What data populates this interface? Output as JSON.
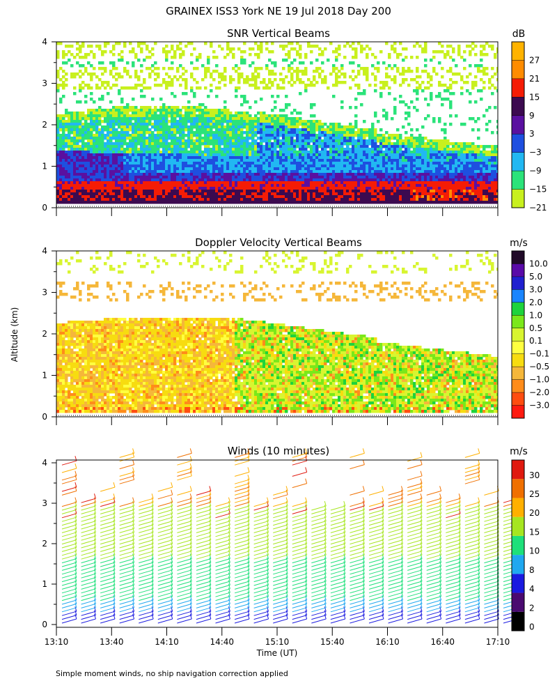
{
  "page_title": "GRAINEX ISS3 York NE  19 Jul 2018 Day 200",
  "footnote": "Simple moment winds, no ship navigation correction applied",
  "colors": {
    "snr": [
      "#c8f01e",
      "#2be37a",
      "#21b8f2",
      "#1e4fe0",
      "#5a10a0",
      "#3c0a50",
      "#f51c05",
      "#ff8c00",
      "#ffb300"
    ],
    "doppler": [
      "#ff1a10",
      "#ff4d10",
      "#ff8c1a",
      "#f5b73a",
      "#f7dc10",
      "#ffff40",
      "#d8f530",
      "#7be81a",
      "#1ed33c",
      "#1a85ff",
      "#2020d0",
      "#5a0aa8",
      "#200a28"
    ],
    "winds": [
      "#000000",
      "#4a0a70",
      "#1a1ae0",
      "#1fa8f0",
      "#1ee07a",
      "#a6e620",
      "#ffb000",
      "#f07000",
      "#e01a10"
    ]
  },
  "chart_data": [
    {
      "type": "heatmap",
      "title": "SNR Vertical Beams",
      "ylabel": "",
      "xlabel": "",
      "ylim": [
        0,
        4
      ],
      "y_ticks": [
        "0",
        "1",
        "2",
        "3",
        "4"
      ],
      "x_ticks_count": 9,
      "colorbar": {
        "unit": "dB",
        "labels": [
          "27",
          "21",
          "15",
          "9",
          "3",
          "−3",
          "−9",
          "−15",
          "−21"
        ]
      },
      "layers": [
        {
          "altitude_km": [
            0.2,
            0.5
          ],
          "level": "9"
        },
        {
          "altitude_km": [
            0.5,
            0.7
          ],
          "level": "15"
        },
        {
          "altitude_km": [
            0.7,
            1.2
          ],
          "level": "-3"
        },
        {
          "altitude_km": [
            1.2,
            2.0
          ],
          "level": "-9"
        },
        {
          "altitude_km": [
            2.0,
            2.6
          ],
          "level": "-15"
        },
        {
          "altitude_km": [
            2.6,
            4.0
          ],
          "level": "-21"
        }
      ]
    },
    {
      "type": "heatmap",
      "title": "Doppler Velocity Vertical Beams",
      "ylabel": "Altitude (km)",
      "xlabel": "",
      "ylim": [
        0,
        4
      ],
      "y_ticks": [
        "0",
        "1",
        "2",
        "3",
        "4"
      ],
      "x_ticks_count": 9,
      "colorbar": {
        "unit": "m/s",
        "labels": [
          "10.0",
          "5.0",
          "3.0",
          "2.0",
          "1.0",
          "0.5",
          "0.1",
          "−0.1",
          "−0.5",
          "−1.0",
          "−2.0",
          "−3.0"
        ]
      }
    },
    {
      "type": "scatter",
      "title": "Winds (10 minutes)",
      "ylabel": "",
      "xlabel": "Time (UT)",
      "ylim": [
        0,
        4
      ],
      "y_ticks": [
        "0",
        "1",
        "2",
        "3",
        "4"
      ],
      "x_tick_labels": [
        "13:10",
        "13:40",
        "14:10",
        "14:40",
        "15:10",
        "15:40",
        "16:10",
        "16:40",
        "17:10"
      ],
      "colorbar": {
        "unit": "m/s",
        "labels": [
          "30",
          "25",
          "20",
          "15",
          "10",
          "8",
          "4",
          "2",
          "0"
        ]
      },
      "profile_times_utc": [
        "13:10",
        "13:20",
        "13:30",
        "13:40",
        "13:50",
        "14:00",
        "14:10",
        "14:20",
        "14:30",
        "14:40",
        "14:50",
        "15:00",
        "15:10",
        "15:20",
        "15:30",
        "15:40",
        "15:50",
        "16:00",
        "16:10",
        "16:20",
        "16:30",
        "16:40",
        "16:50",
        "17:00"
      ]
    }
  ]
}
